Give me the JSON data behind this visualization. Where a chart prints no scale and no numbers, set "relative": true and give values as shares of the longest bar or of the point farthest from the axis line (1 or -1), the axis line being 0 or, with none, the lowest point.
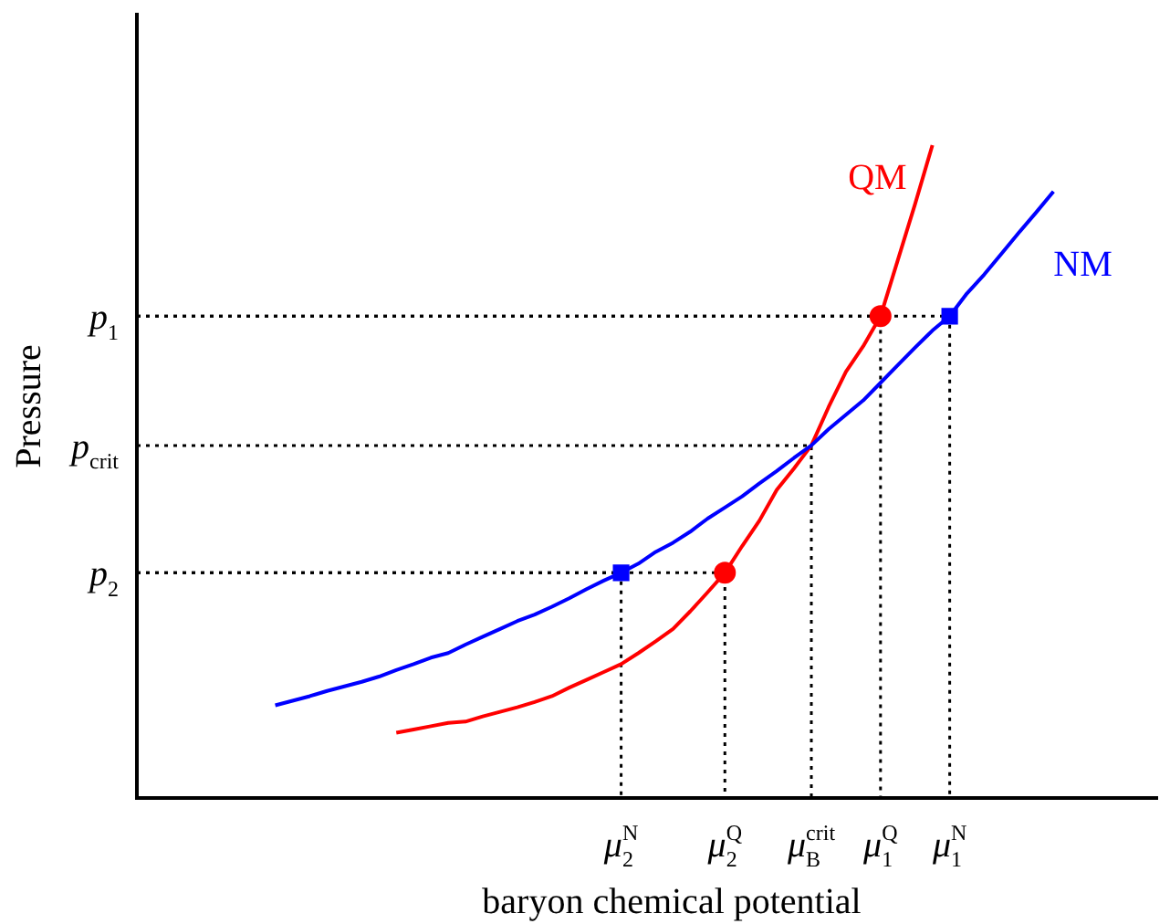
{
  "chart_data": {
    "type": "line",
    "relative": true,
    "xlabel": "baryon chemical potential",
    "ylabel": "Pressure",
    "legend": false,
    "categories": [
      null,
      null,
      null,
      null,
      null,
      null,
      null,
      null,
      null,
      null,
      null,
      null,
      null,
      null,
      null,
      null,
      null,
      null,
      null,
      null,
      null,
      null,
      null,
      null,
      null,
      null,
      null,
      null,
      "μ$_{2}$$^{N}$",
      null,
      null,
      null,
      null,
      null,
      "μ$_{2}$$^{Q}$",
      null,
      null,
      null,
      null,
      "μ$_{B}$$^{crit}$",
      null,
      null,
      null,
      "μ$_{1}$$^{Q}$",
      null,
      null,
      null,
      "μ$_{1}$$^{N}$",
      null,
      null,
      null,
      null,
      null,
      null,
      null,
      null,
      null,
      null,
      null,
      null
    ],
    "annotations": [
      "p$_{2}$",
      "p$_{crit}$",
      "p$_{1}$"
    ],
    "series": [
      {
        "name": "NM",
        "color": "#0000ff",
        "marker": "none",
        "values": [
          null,
          null,
          null,
          null,
          null,
          null,
          null,
          null,
          0.142,
          0.149,
          0.156,
          0.164,
          0.171,
          0.178,
          0.186,
          0.196,
          0.205,
          0.215,
          0.222,
          0.235,
          0.247,
          0.259,
          0.271,
          0.281,
          0.293,
          0.306,
          0.32,
          0.333,
          0.345,
          0.359,
          0.377,
          0.391,
          0.408,
          0.428,
          0.445,
          0.462,
          0.482,
          0.501,
          0.521,
          0.54,
          0.565,
          0.587,
          0.609,
          0.636,
          0.663,
          0.69,
          0.716,
          0.738,
          0.773,
          0.802,
          0.834,
          0.866,
          0.897,
          0.929,
          null,
          null,
          null,
          null,
          null,
          null
        ]
      },
      {
        "name": "QM",
        "color": "#ff0000",
        "marker": "none",
        "values": [
          null,
          null,
          null,
          null,
          null,
          null,
          null,
          null,
          null,
          null,
          null,
          null,
          null,
          null,
          null,
          0.1,
          0.105,
          0.11,
          0.115,
          0.117,
          0.125,
          0.132,
          0.139,
          0.147,
          0.156,
          0.169,
          0.181,
          0.193,
          0.205,
          0.222,
          0.24,
          0.259,
          0.286,
          0.315,
          0.345,
          0.386,
          0.425,
          0.472,
          0.505,
          0.54,
          0.599,
          0.653,
          0.692,
          0.738,
          0.824,
          0.91,
          1,
          null,
          null,
          null,
          null,
          null,
          null,
          null,
          null,
          null,
          null,
          null,
          null,
          null
        ]
      },
      {
        "type": "scatter",
        "color": "#0000ff",
        "marker": "square",
        "values": [
          null,
          null,
          null,
          null,
          null,
          null,
          null,
          null,
          null,
          null,
          null,
          null,
          null,
          null,
          null,
          null,
          null,
          null,
          null,
          null,
          null,
          null,
          null,
          null,
          null,
          null,
          null,
          null,
          0.345,
          null,
          null,
          null,
          null,
          null,
          null,
          null,
          null,
          null,
          null,
          null,
          null,
          null,
          null,
          null,
          null,
          null,
          null,
          0.738,
          null,
          null,
          null,
          null,
          null,
          null,
          null,
          null,
          null,
          null,
          null,
          null
        ]
      },
      {
        "type": "scatter",
        "color": "#ff0000",
        "marker": "circle",
        "values": [
          null,
          null,
          null,
          null,
          null,
          null,
          null,
          null,
          null,
          null,
          null,
          null,
          null,
          null,
          null,
          null,
          null,
          null,
          null,
          null,
          null,
          null,
          null,
          null,
          null,
          null,
          null,
          null,
          null,
          null,
          null,
          null,
          null,
          null,
          0.345,
          null,
          null,
          null,
          null,
          null,
          null,
          null,
          null,
          0.738,
          null,
          null,
          null,
          null,
          null,
          null,
          null,
          null,
          null,
          null,
          null,
          null,
          null,
          null,
          null,
          null
        ]
      }
    ]
  }
}
